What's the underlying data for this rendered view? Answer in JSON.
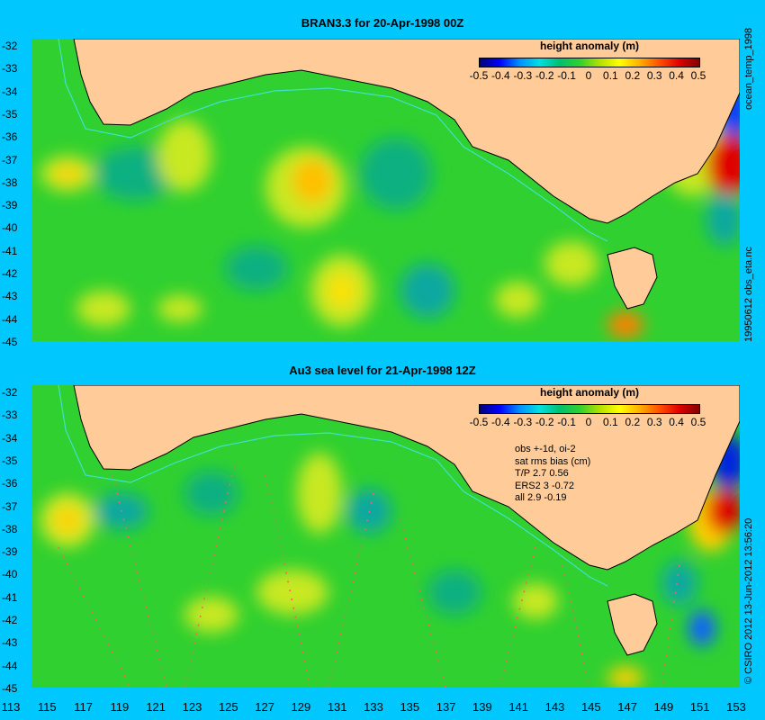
{
  "panels": [
    {
      "title": "BRAN3.3 for 20-Apr-1998 00Z",
      "legend_title": "height anomaly (m)"
    },
    {
      "title": "Au3 sea level  for 21-Apr-1998 12Z",
      "legend_title": "height anomaly (m)"
    }
  ],
  "legend_ticks": [
    "-0.5",
    "-0.4",
    "-0.3",
    "-0.2",
    "-0.1",
    "0",
    "0.1",
    "0.2",
    "0.3",
    "0.4",
    "0.5"
  ],
  "y_ticks": [
    "-32",
    "-33",
    "-34",
    "-35",
    "-36",
    "-37",
    "-38",
    "-39",
    "-40",
    "-41",
    "-42",
    "-43",
    "-44",
    "-45"
  ],
  "x_ticks": [
    "113",
    "115",
    "117",
    "119",
    "121",
    "123",
    "125",
    "127",
    "129",
    "131",
    "133",
    "135",
    "137",
    "139",
    "141",
    "143",
    "145",
    "147",
    "149",
    "151",
    "153"
  ],
  "side_labels": {
    "top_upper": "ocean_temp_1998",
    "top_lower": "19950612 obs_eta.nc",
    "bottom": "© CSIRO 2012   13-Jun-2012 13:56:20"
  },
  "stats": [
    "obs +-1d, oi-2",
    "sat rms bias (cm)",
    "T/P  2.7 0.56",
    "ERS2  3 -0.72",
    "all 2.9 -0.19"
  ],
  "colors": {
    "background": "#00c8ff",
    "land": "#ffcc99",
    "ocean_base": "#30d030",
    "coastline": "#000000",
    "shelf_line": "#40e0d0"
  }
}
